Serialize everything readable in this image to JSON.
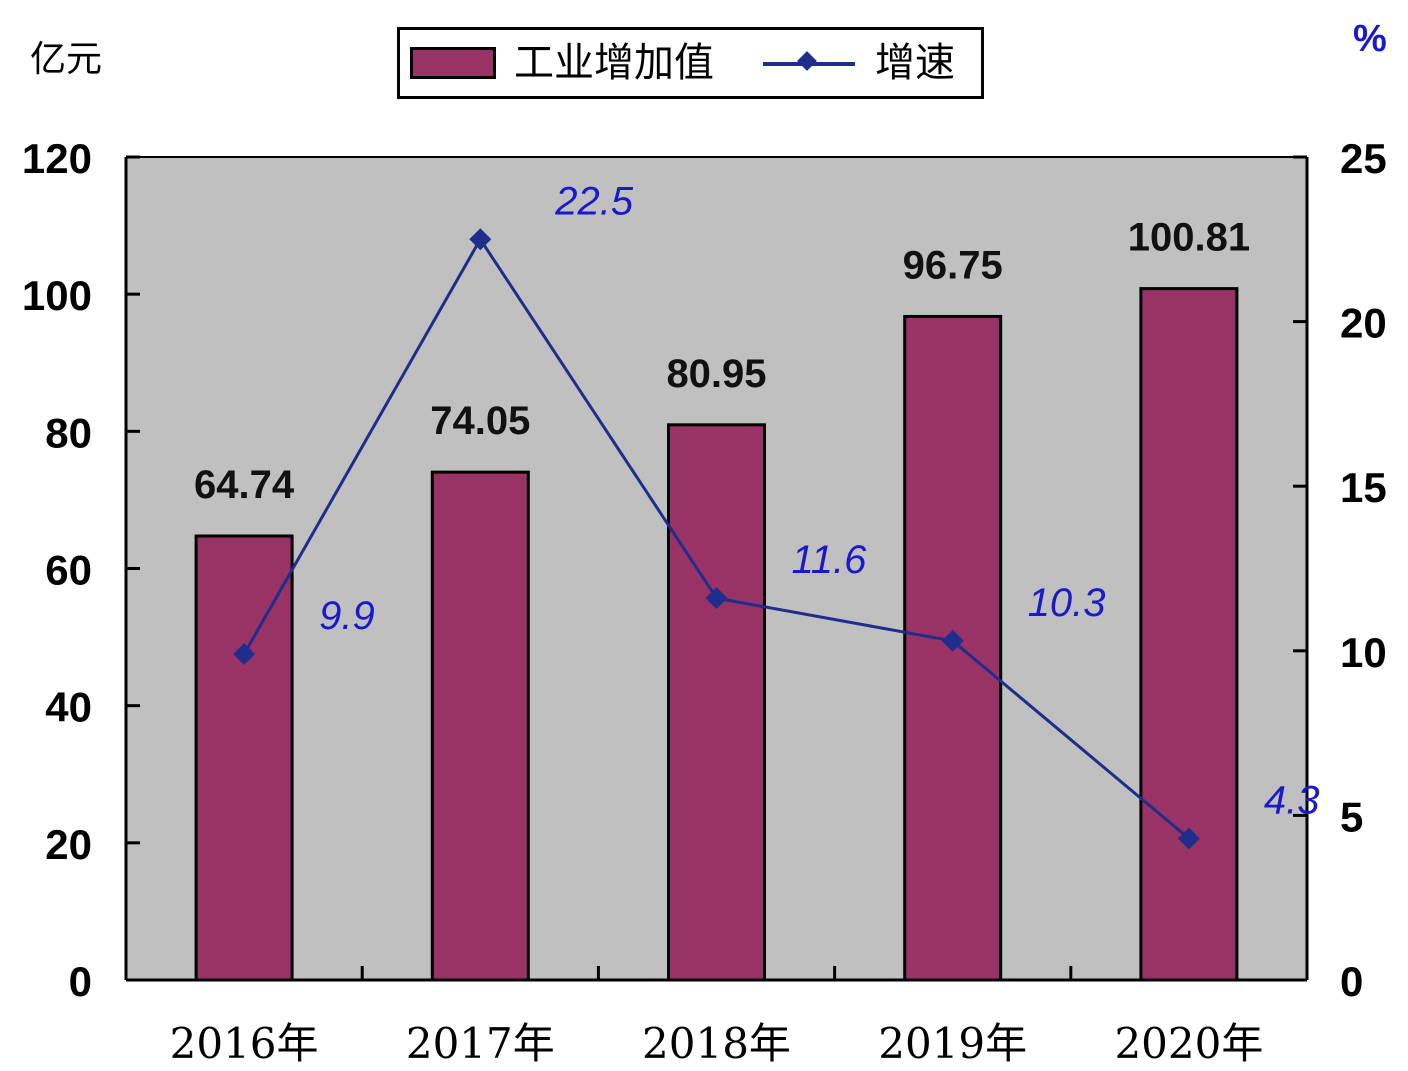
{
  "chart_data": {
    "type": "bar",
    "categories": [
      "2016年",
      "2017年",
      "2018年",
      "2019年",
      "2020年"
    ],
    "series": [
      {
        "name": "工业增加值",
        "kind": "bar",
        "axis": "left",
        "values": [
          64.74,
          74.05,
          80.95,
          96.75,
          100.81
        ],
        "color": "#993366"
      },
      {
        "name": "增速",
        "kind": "line",
        "axis": "right",
        "values": [
          9.9,
          22.5,
          11.6,
          10.3,
          4.3
        ],
        "color": "#1f2d8c"
      }
    ],
    "bar_labels": [
      "64.74",
      "74.05",
      "80.95",
      "96.75",
      "100.81"
    ],
    "line_labels": [
      "9.9",
      "22.5",
      "11.6",
      "10.3",
      "4.3"
    ],
    "y_left": {
      "unit": "亿元",
      "ylim": [
        0,
        120
      ],
      "ticks": [
        0,
        20,
        40,
        60,
        80,
        100,
        120
      ]
    },
    "y_right": {
      "unit": "%",
      "ylim": [
        0,
        25
      ],
      "ticks": [
        0,
        5,
        10,
        15,
        20,
        25
      ]
    },
    "legend": {
      "placement": "top-center",
      "items": [
        "工业增加值",
        "增速"
      ]
    },
    "grid": false,
    "colors": {
      "plot_bg": "#c0c0c0",
      "bar": "#993366",
      "line": "#1f2d8c",
      "line_label": "#1a1acc"
    }
  }
}
